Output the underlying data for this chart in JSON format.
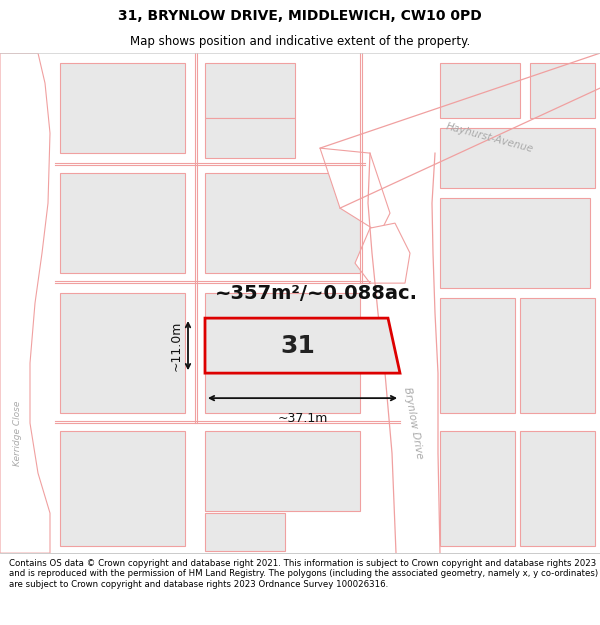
{
  "title_line1": "31, BRYNLOW DRIVE, MIDDLEWICH, CW10 0PD",
  "title_line2": "Map shows position and indicative extent of the property.",
  "area_text": "~357m²/~0.088ac.",
  "property_number": "31",
  "dim_width": "~37.1m",
  "dim_height": "~11.0m",
  "footer_text": "Contains OS data © Crown copyright and database right 2021. This information is subject to Crown copyright and database rights 2023 and is reproduced with the permission of HM Land Registry. The polygons (including the associated geometry, namely x, y co-ordinates) are subject to Crown copyright and database rights 2023 Ordnance Survey 100026316.",
  "bg_color": "#ffffff",
  "map_bg": "#ffffff",
  "plot_fill": "#e8e8e8",
  "road_outline": "#f0a0a0",
  "property_edge_color": "#dd0000",
  "property_fill": "#e8e8e8",
  "dim_line_color": "#333333",
  "street_color": "#aaaaaa",
  "street_label_brynlow": "Brynlow Drive",
  "street_label_hayhurst": "Hayhurst-Avenue",
  "street_label_kerridge": "Kerridge Close"
}
